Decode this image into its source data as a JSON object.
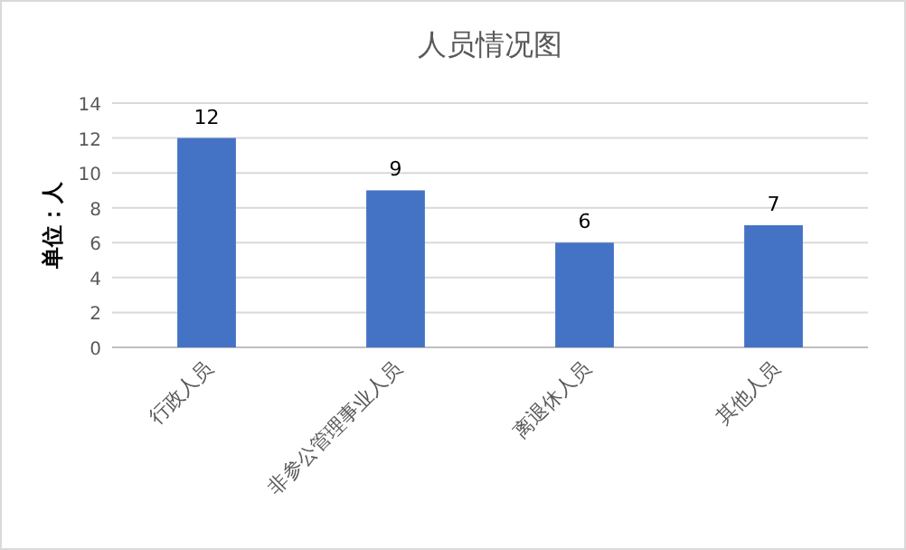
{
  "chart_data": {
    "type": "bar",
    "title": "人员情况图",
    "ylabel": "单位：人",
    "categories": [
      "行政人员",
      "非参公管理事业人员",
      "离退休人员",
      "其他人员"
    ],
    "values": [
      12,
      9,
      6,
      7
    ],
    "color": "#4472c4",
    "ylim": [
      0,
      14
    ],
    "yticks": [
      0,
      2,
      4,
      6,
      8,
      10,
      12,
      14
    ],
    "grid": "y",
    "data_labels": true
  }
}
